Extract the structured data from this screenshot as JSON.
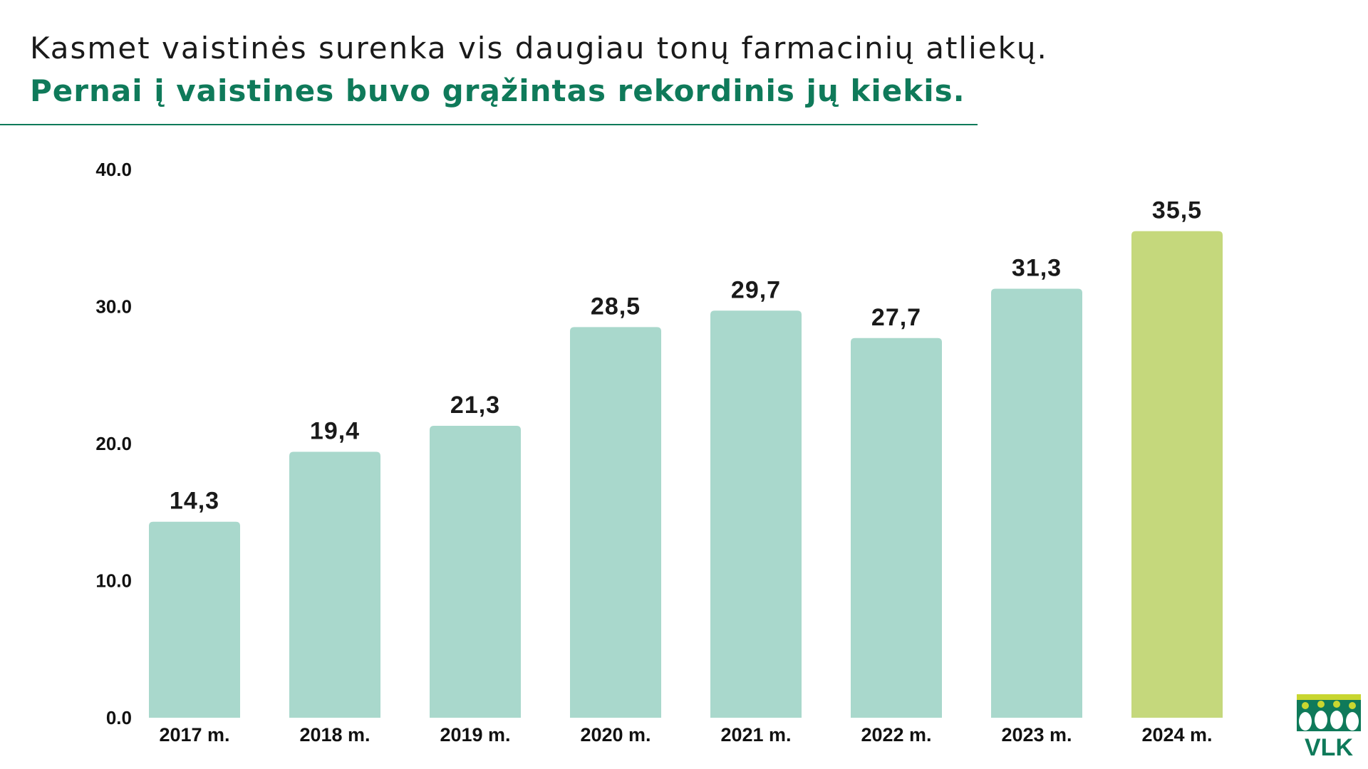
{
  "header": {
    "title_line1": "Kasmet vaistinės surenka vis daugiau tonų farmacinių atliekų.",
    "title_line2": "Pernai į vaistines buvo grąžintas rekordinis jų kiekis."
  },
  "logo": {
    "text": "VLK"
  },
  "colors": {
    "accent": "#0f7a5a",
    "bar_default": "#a9d8cc",
    "bar_highlight": "#c5d87c",
    "logo_green": "#0f7a5a",
    "logo_lime": "#c8d630"
  },
  "chart_data": {
    "type": "bar",
    "categories": [
      "2017 m.",
      "2018 m.",
      "2019 m.",
      "2020 m.",
      "2021 m.",
      "2022 m.",
      "2023 m.",
      "2024 m."
    ],
    "values": [
      14.3,
      19.4,
      21.3,
      28.5,
      29.7,
      27.7,
      31.3,
      35.5
    ],
    "value_labels": [
      "14,3",
      "19,4",
      "21,3",
      "28,5",
      "29,7",
      "27,7",
      "31,3",
      "35,5"
    ],
    "highlight_index": 7,
    "yticks": [
      "0.0",
      "10.0",
      "20.0",
      "30.0",
      "40.0"
    ],
    "ylim": [
      0,
      40
    ],
    "grid": false,
    "legend": "none"
  }
}
